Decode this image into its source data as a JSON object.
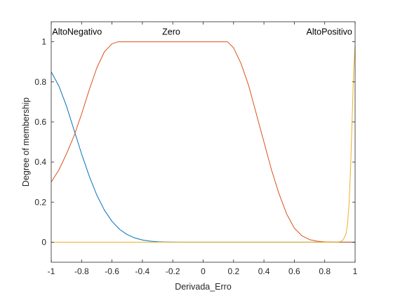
{
  "chart_data": {
    "type": "line",
    "title": "",
    "xlabel": "Derivada_Erro",
    "ylabel": "Degree of membership",
    "xlim": [
      -1,
      1
    ],
    "ylim": [
      -0.1,
      1.1
    ],
    "grid": false,
    "legend": "none",
    "xticks": [
      -1,
      -0.8,
      -0.6,
      -0.4,
      -0.2,
      0,
      0.2,
      0.4,
      0.6,
      0.8,
      1
    ],
    "xtick_labels": [
      "-1",
      "-0.8",
      "-0.6",
      "-0.4",
      "-0.2",
      "0",
      "0.2",
      "0.4",
      "0.6",
      "0.8",
      "1"
    ],
    "yticks": [
      0,
      0.2,
      0.4,
      0.6,
      0.8,
      1
    ],
    "ytick_labels": [
      "0",
      "0.2",
      "0.4",
      "0.6",
      "0.8",
      "1"
    ],
    "series": [
      {
        "name": "AltoNegativo",
        "color": "#0072BD",
        "x": [
          -1,
          -0.95,
          -0.9,
          -0.85,
          -0.8,
          -0.75,
          -0.7,
          -0.65,
          -0.6,
          -0.55,
          -0.5,
          -0.45,
          -0.4,
          -0.35,
          -0.3,
          -0.25,
          -0.2,
          -0.15,
          -0.1,
          0,
          0.2,
          0.4,
          0.6,
          0.8,
          1
        ],
        "y": [
          0.85,
          0.78,
          0.68,
          0.56,
          0.44,
          0.33,
          0.235,
          0.16,
          0.104,
          0.064,
          0.038,
          0.021,
          0.011,
          0.0055,
          0.0025,
          0.0011,
          0.0005,
          0.0002,
          0.0001,
          0,
          0,
          0,
          0,
          0,
          0
        ]
      },
      {
        "name": "Zero",
        "color": "#D95319",
        "x": [
          -1,
          -0.95,
          -0.9,
          -0.85,
          -0.8,
          -0.75,
          -0.7,
          -0.65,
          -0.6,
          -0.56,
          -0.5,
          -0.4,
          -0.2,
          0,
          0.16,
          0.2,
          0.25,
          0.3,
          0.35,
          0.4,
          0.45,
          0.5,
          0.55,
          0.6,
          0.65,
          0.7,
          0.75,
          0.8,
          0.85,
          0.9,
          0.95,
          1
        ],
        "y": [
          0.3,
          0.36,
          0.44,
          0.53,
          0.64,
          0.76,
          0.87,
          0.95,
          0.99,
          1,
          1,
          1,
          1,
          1,
          1,
          0.97,
          0.89,
          0.78,
          0.64,
          0.5,
          0.36,
          0.24,
          0.14,
          0.07,
          0.032,
          0.013,
          0.005,
          0.0015,
          0.0004,
          0.0001,
          0,
          0
        ]
      },
      {
        "name": "AltoPositivo",
        "color": "#EDB120",
        "x": [
          -1,
          0,
          0.5,
          0.85,
          0.88,
          0.9,
          0.92,
          0.94,
          0.95,
          0.96,
          0.97,
          0.98,
          0.99,
          1
        ],
        "y": [
          0,
          0,
          0,
          0,
          0.0005,
          0.002,
          0.01,
          0.04,
          0.09,
          0.19,
          0.36,
          0.6,
          0.85,
          0.98
        ]
      }
    ],
    "annotations": [
      {
        "text": "AltoNegativo",
        "x": -0.83,
        "y": 1.05
      },
      {
        "text": "Zero",
        "x": -0.21,
        "y": 1.05
      },
      {
        "text": "AltoPositivo",
        "x": 0.83,
        "y": 1.05
      }
    ]
  }
}
